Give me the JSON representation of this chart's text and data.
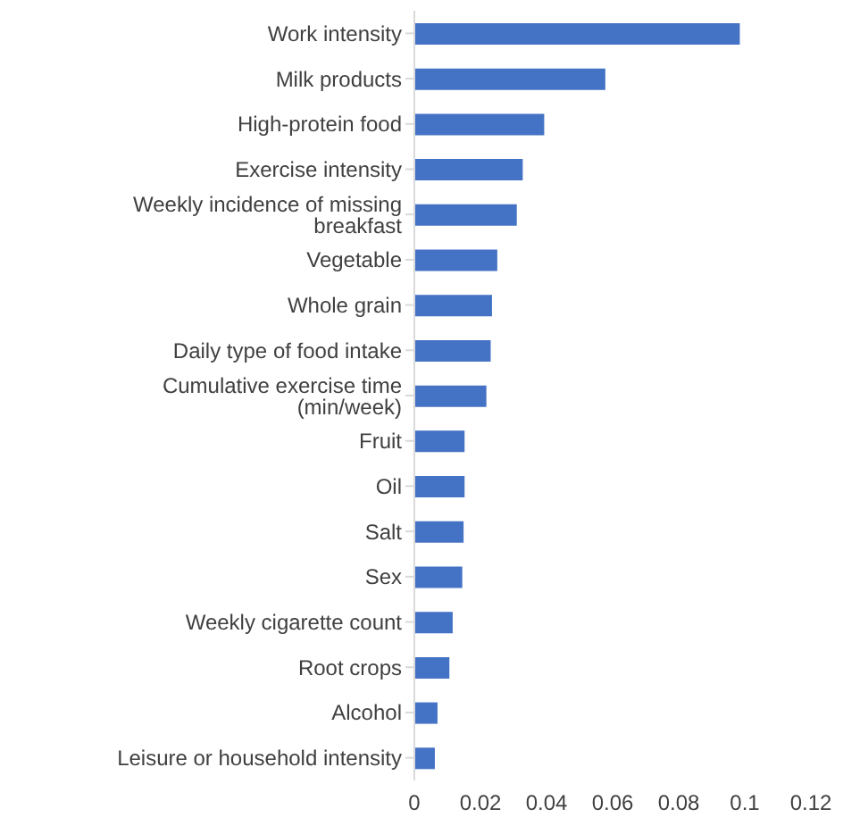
{
  "chart_data": {
    "type": "bar",
    "orientation": "horizontal",
    "categories": [
      "Work intensity",
      "Milk products",
      "High-protein food",
      "Exercise intensity",
      "Weekly incidence of missing breakfast",
      "Vegetable",
      "Whole grain",
      "Daily type of food intake",
      "Cumulative exercise time (min/week)",
      "Fruit",
      "Oil",
      "Salt",
      "Sex",
      "Weekly cigarette count",
      "Root crops",
      "Alcohol",
      "Leisure or household intensity"
    ],
    "values": [
      0.0985,
      0.0578,
      0.0393,
      0.0328,
      0.031,
      0.0251,
      0.0235,
      0.0231,
      0.0218,
      0.0152,
      0.0152,
      0.0149,
      0.0145,
      0.0116,
      0.0106,
      0.007,
      0.0062
    ],
    "color": "#4472c4",
    "xlim": [
      0,
      0.12
    ],
    "xticks": [
      0,
      0.02,
      0.04,
      0.06,
      0.08,
      0.1,
      0.12
    ],
    "grid": false
  }
}
